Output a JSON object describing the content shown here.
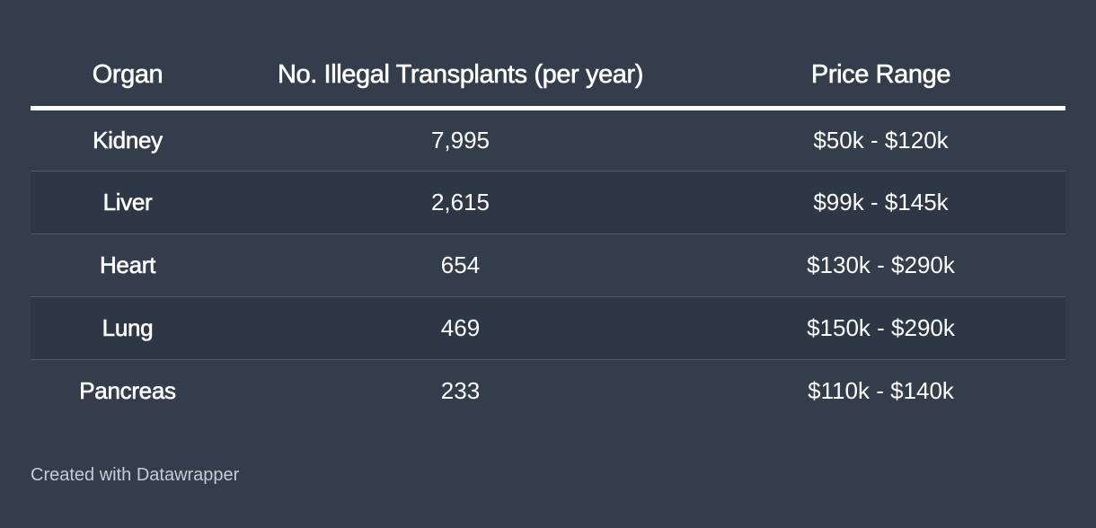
{
  "chart_data": {
    "type": "table",
    "columns": [
      "Organ",
      "No. Illegal Transplants (per year)",
      "Price Range"
    ],
    "rows": [
      [
        "Kidney",
        "7,995",
        "$50k - $120k"
      ],
      [
        "Liver",
        "2,615",
        "$99k - $145k"
      ],
      [
        "Heart",
        "654",
        "$130k - $290k"
      ],
      [
        "Lung",
        "469",
        "$150k - $290k"
      ],
      [
        "Pancreas",
        "233",
        "$110k - $140k"
      ]
    ]
  },
  "footer": {
    "credit": "Created with Datawrapper"
  },
  "colors": {
    "background": "#333d4c",
    "alt_row": "#2e3746",
    "text": "#ffffff",
    "divider": "#4f5968"
  }
}
